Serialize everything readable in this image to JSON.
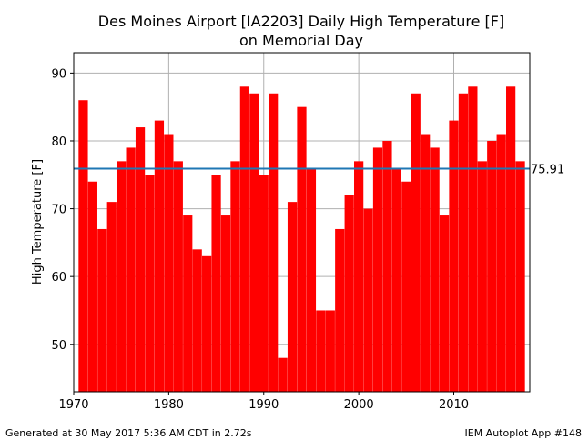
{
  "chart_data": {
    "type": "bar",
    "title": "Des Moines Airport [IA2203] Daily High Temperature [F]",
    "subtitle": "on Memorial Day",
    "xlabel": "",
    "ylabel": "High Temperature [F]",
    "xlim": [
      1970,
      2018
    ],
    "ylim": [
      43,
      93
    ],
    "x_ticks": [
      1970,
      1980,
      1990,
      2000,
      2010
    ],
    "y_ticks": [
      50,
      60,
      70,
      80,
      90
    ],
    "grid": true,
    "bar_color": "#ff0000",
    "mean_line": {
      "value": 75.91,
      "label": "75.91",
      "color": "#1f77b4"
    },
    "years": [
      1971,
      1972,
      1973,
      1974,
      1975,
      1976,
      1977,
      1978,
      1979,
      1980,
      1981,
      1982,
      1983,
      1984,
      1985,
      1986,
      1987,
      1988,
      1989,
      1990,
      1991,
      1992,
      1993,
      1994,
      1995,
      1996,
      1997,
      1998,
      1999,
      2000,
      2001,
      2002,
      2003,
      2004,
      2005,
      2006,
      2007,
      2008,
      2009,
      2010,
      2011,
      2012,
      2013,
      2014,
      2015,
      2016,
      2017
    ],
    "values": [
      86,
      74,
      67,
      71,
      77,
      79,
      82,
      75,
      83,
      81,
      77,
      69,
      64,
      63,
      75,
      69,
      77,
      88,
      87,
      75,
      87,
      48,
      71,
      85,
      76,
      55,
      55,
      67,
      72,
      77,
      70,
      79,
      80,
      76,
      74,
      87,
      81,
      79,
      69,
      83,
      87,
      88,
      77,
      80,
      81,
      88,
      77
    ]
  },
  "footer": {
    "left": "Generated at 30 May 2017 5:36 AM CDT in 2.72s",
    "right": "IEM Autoplot App #148"
  }
}
